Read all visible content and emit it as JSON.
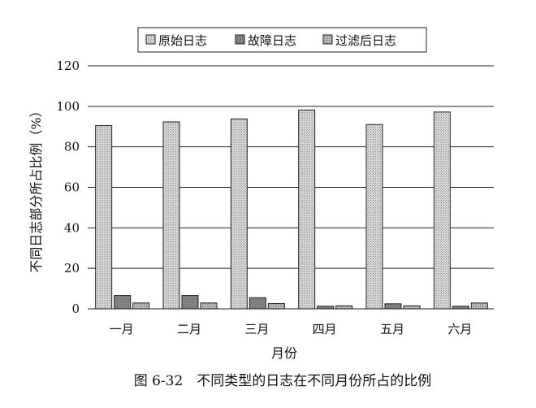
{
  "chart_data": {
    "type": "bar",
    "categories": [
      "一月",
      "二月",
      "三月",
      "四月",
      "五月",
      "六月"
    ],
    "series": [
      {
        "name": "原始日志",
        "values": [
          90.5,
          92.3,
          93.8,
          98.2,
          91.0,
          97.2
        ],
        "color": "#c8c8c8"
      },
      {
        "name": "故障日志",
        "values": [
          6.6,
          6.6,
          5.5,
          1.3,
          2.5,
          1.3
        ],
        "color": "#9a9a9a"
      },
      {
        "name": "过滤后日志",
        "values": [
          2.9,
          2.9,
          2.6,
          1.5,
          1.5,
          2.9
        ],
        "color": "#b0b0b0"
      }
    ],
    "xlabel": "月份",
    "ylabel": "不同日志部分所占比例（%）",
    "ylim": [
      0,
      120
    ],
    "yticks": [
      0,
      20,
      40,
      60,
      80,
      100,
      120
    ],
    "grid": true,
    "legend_position": "top-center"
  },
  "caption": "图 6-32　不同类型的日志在不同月份所占的比例"
}
